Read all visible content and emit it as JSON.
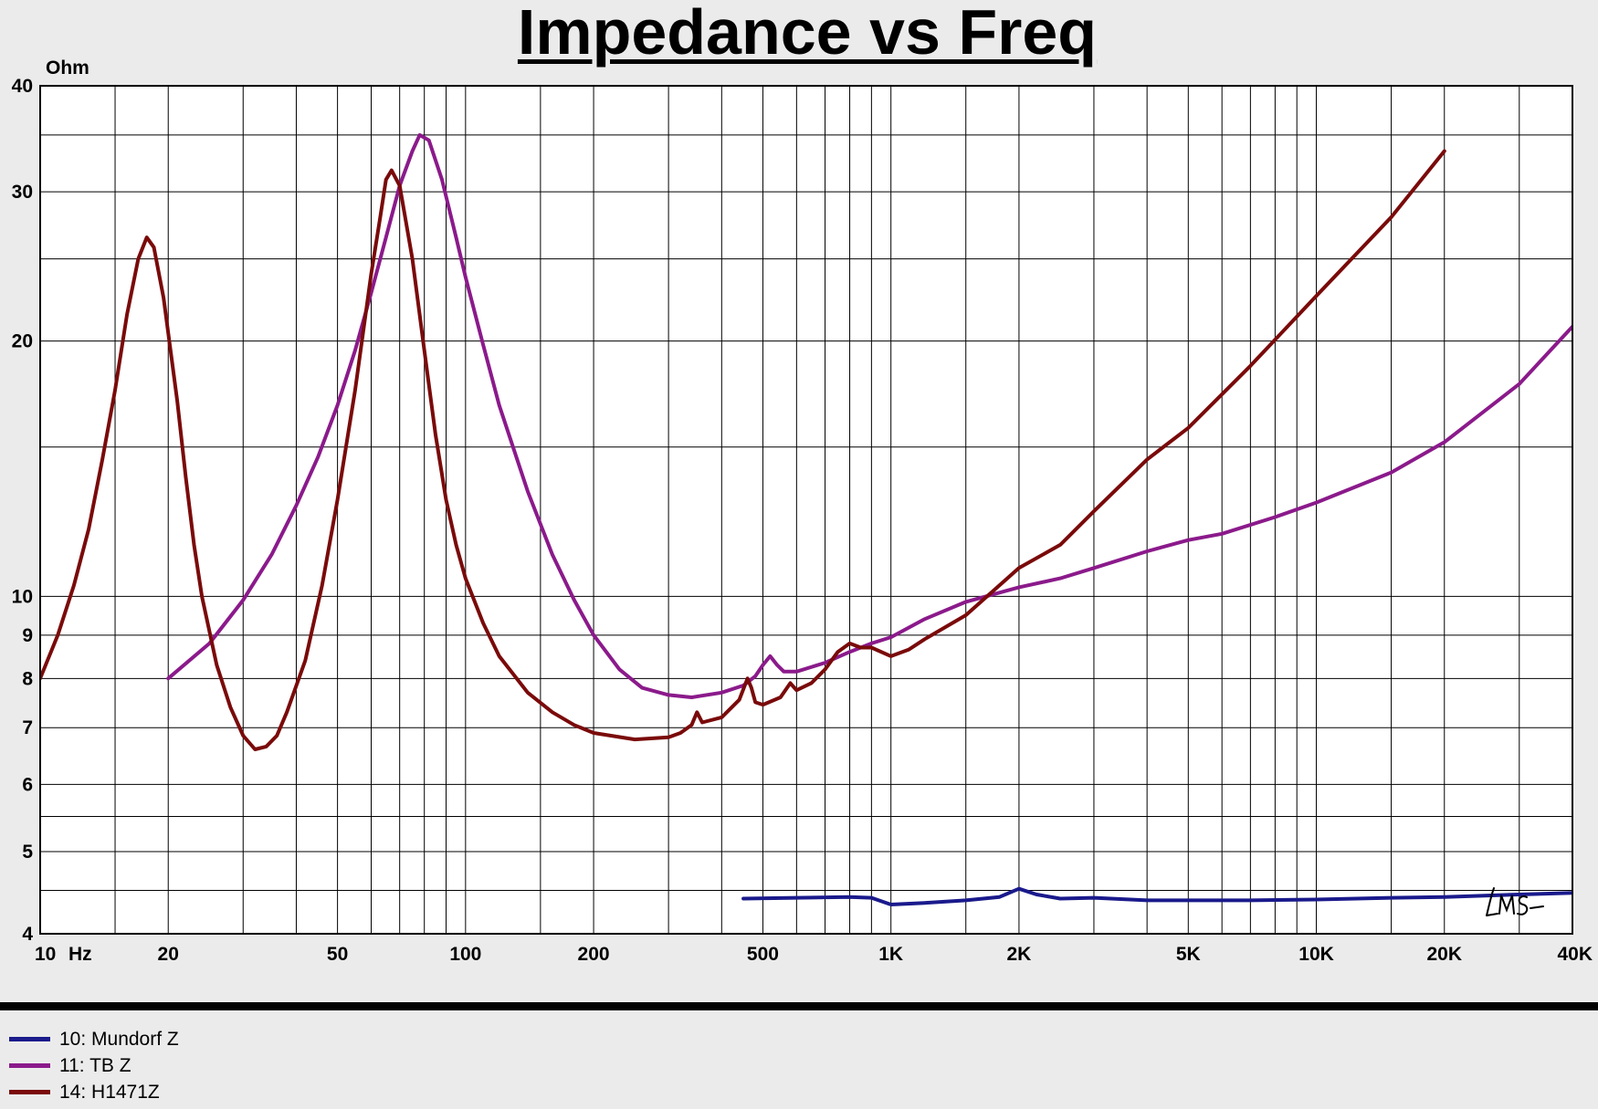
{
  "chart_data": {
    "type": "line",
    "title": "Impedance vs Freq",
    "ylabel": "Ohm",
    "x_unit": "Hz",
    "x_scale": "log",
    "y_scale": "log",
    "xlim": [
      10,
      40000
    ],
    "ylim": [
      4,
      40
    ],
    "grid": true,
    "legend_position": "bottom-left",
    "x_tick_labels": [
      {
        "value": 10,
        "label": "10"
      },
      {
        "value": 20,
        "label": "20"
      },
      {
        "value": 50,
        "label": "50"
      },
      {
        "value": 100,
        "label": "100"
      },
      {
        "value": 200,
        "label": "200"
      },
      {
        "value": 500,
        "label": "500"
      },
      {
        "value": 1000,
        "label": "1K"
      },
      {
        "value": 2000,
        "label": "2K"
      },
      {
        "value": 5000,
        "label": "5K"
      },
      {
        "value": 10000,
        "label": "10K"
      },
      {
        "value": 20000,
        "label": "20K"
      },
      {
        "value": 40000,
        "label": "40K"
      }
    ],
    "y_tick_labels": [
      {
        "value": 4,
        "label": "4"
      },
      {
        "value": 5,
        "label": "5"
      },
      {
        "value": 6,
        "label": "6"
      },
      {
        "value": 7,
        "label": "7"
      },
      {
        "value": 8,
        "label": "8"
      },
      {
        "value": 9,
        "label": "9"
      },
      {
        "value": 10,
        "label": "10"
      },
      {
        "value": 20,
        "label": "20"
      },
      {
        "value": 30,
        "label": "30"
      },
      {
        "value": 40,
        "label": "40"
      }
    ],
    "series": [
      {
        "name": "10: Mundorf Z",
        "color": "#1a1a8c",
        "points": [
          [
            450,
            4.4
          ],
          [
            600,
            4.41
          ],
          [
            800,
            4.42
          ],
          [
            900,
            4.41
          ],
          [
            1000,
            4.33
          ],
          [
            1200,
            4.35
          ],
          [
            1500,
            4.38
          ],
          [
            1800,
            4.42
          ],
          [
            2000,
            4.52
          ],
          [
            2200,
            4.45
          ],
          [
            2500,
            4.4
          ],
          [
            3000,
            4.41
          ],
          [
            4000,
            4.38
          ],
          [
            5000,
            4.38
          ],
          [
            7000,
            4.38
          ],
          [
            10000,
            4.39
          ],
          [
            15000,
            4.41
          ],
          [
            20000,
            4.42
          ],
          [
            30000,
            4.45
          ],
          [
            40000,
            4.47
          ]
        ]
      },
      {
        "name": "11: TB Z",
        "color": "#8b1a8b",
        "points": [
          [
            20,
            8.0
          ],
          [
            25,
            8.8
          ],
          [
            30,
            9.9
          ],
          [
            35,
            11.2
          ],
          [
            40,
            12.8
          ],
          [
            45,
            14.6
          ],
          [
            50,
            16.8
          ],
          [
            55,
            19.5
          ],
          [
            60,
            22.8
          ],
          [
            65,
            26.5
          ],
          [
            70,
            30.5
          ],
          [
            75,
            33.5
          ],
          [
            78,
            35.0
          ],
          [
            82,
            34.5
          ],
          [
            88,
            31.0
          ],
          [
            95,
            26.5
          ],
          [
            100,
            23.8
          ],
          [
            110,
            19.8
          ],
          [
            120,
            16.8
          ],
          [
            140,
            13.3
          ],
          [
            160,
            11.2
          ],
          [
            180,
            9.9
          ],
          [
            200,
            9.0
          ],
          [
            230,
            8.2
          ],
          [
            260,
            7.8
          ],
          [
            300,
            7.65
          ],
          [
            340,
            7.6
          ],
          [
            400,
            7.7
          ],
          [
            450,
            7.85
          ],
          [
            480,
            8.05
          ],
          [
            500,
            8.3
          ],
          [
            520,
            8.5
          ],
          [
            540,
            8.3
          ],
          [
            560,
            8.15
          ],
          [
            600,
            8.15
          ],
          [
            700,
            8.35
          ],
          [
            800,
            8.6
          ],
          [
            900,
            8.8
          ],
          [
            1000,
            8.95
          ],
          [
            1200,
            9.4
          ],
          [
            1500,
            9.85
          ],
          [
            2000,
            10.25
          ],
          [
            2500,
            10.5
          ],
          [
            3000,
            10.8
          ],
          [
            4000,
            11.3
          ],
          [
            5000,
            11.65
          ],
          [
            6000,
            11.85
          ],
          [
            8000,
            12.4
          ],
          [
            10000,
            12.9
          ],
          [
            15000,
            14.0
          ],
          [
            20000,
            15.2
          ],
          [
            30000,
            17.8
          ],
          [
            40000,
            20.8
          ]
        ]
      },
      {
        "name": "14: H1471Z",
        "color": "#7a0a0a",
        "points": [
          [
            10,
            8.0
          ],
          [
            11,
            9.0
          ],
          [
            12,
            10.3
          ],
          [
            13,
            12.0
          ],
          [
            14,
            14.5
          ],
          [
            15,
            17.5
          ],
          [
            16,
            21.5
          ],
          [
            17,
            25.0
          ],
          [
            17.8,
            26.5
          ],
          [
            18.5,
            25.8
          ],
          [
            19.5,
            22.5
          ],
          [
            21,
            17.0
          ],
          [
            22,
            13.8
          ],
          [
            23,
            11.5
          ],
          [
            24,
            10.0
          ],
          [
            26,
            8.3
          ],
          [
            28,
            7.4
          ],
          [
            30,
            6.85
          ],
          [
            32,
            6.6
          ],
          [
            34,
            6.65
          ],
          [
            36,
            6.85
          ],
          [
            38,
            7.3
          ],
          [
            42,
            8.4
          ],
          [
            46,
            10.3
          ],
          [
            50,
            13.0
          ],
          [
            55,
            17.5
          ],
          [
            60,
            24.0
          ],
          [
            63,
            28.0
          ],
          [
            65,
            31.0
          ],
          [
            67,
            31.8
          ],
          [
            70,
            30.5
          ],
          [
            75,
            25.0
          ],
          [
            80,
            19.5
          ],
          [
            85,
            15.5
          ],
          [
            90,
            13.0
          ],
          [
            95,
            11.5
          ],
          [
            100,
            10.5
          ],
          [
            110,
            9.3
          ],
          [
            120,
            8.5
          ],
          [
            140,
            7.7
          ],
          [
            160,
            7.3
          ],
          [
            180,
            7.05
          ],
          [
            200,
            6.9
          ],
          [
            250,
            6.78
          ],
          [
            300,
            6.82
          ],
          [
            320,
            6.9
          ],
          [
            340,
            7.05
          ],
          [
            350,
            7.3
          ],
          [
            360,
            7.1
          ],
          [
            400,
            7.2
          ],
          [
            440,
            7.55
          ],
          [
            460,
            8.0
          ],
          [
            470,
            7.8
          ],
          [
            480,
            7.5
          ],
          [
            500,
            7.45
          ],
          [
            550,
            7.6
          ],
          [
            580,
            7.9
          ],
          [
            600,
            7.75
          ],
          [
            650,
            7.9
          ],
          [
            700,
            8.2
          ],
          [
            750,
            8.6
          ],
          [
            800,
            8.8
          ],
          [
            850,
            8.7
          ],
          [
            900,
            8.7
          ],
          [
            1000,
            8.5
          ],
          [
            1100,
            8.65
          ],
          [
            1200,
            8.9
          ],
          [
            1500,
            9.5
          ],
          [
            2000,
            10.8
          ],
          [
            2500,
            11.5
          ],
          [
            3000,
            12.6
          ],
          [
            4000,
            14.5
          ],
          [
            5000,
            15.8
          ],
          [
            7000,
            18.7
          ],
          [
            10000,
            22.6
          ],
          [
            15000,
            28.0
          ],
          [
            20000,
            33.5
          ]
        ]
      }
    ],
    "annotation": "LMS"
  }
}
